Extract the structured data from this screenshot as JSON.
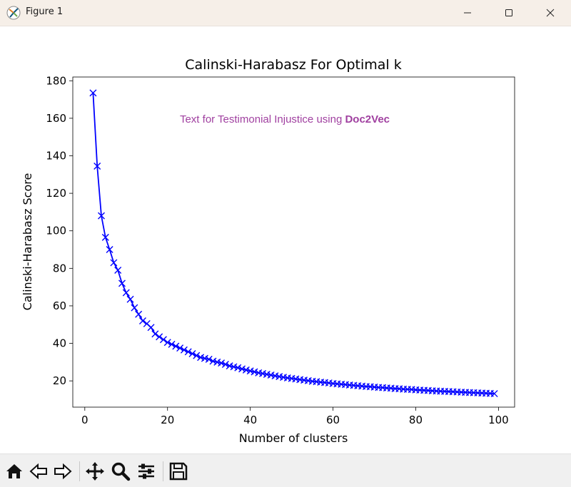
{
  "window": {
    "title": "Figure 1"
  },
  "chart_data": {
    "type": "line",
    "title": "Calinski-Harabasz For Optimal k",
    "xlabel": "Number of clusters",
    "ylabel": "Calinski-Harabasz Score",
    "annotation": {
      "text": "Text for Testimonial Injustice using ",
      "bold": "Doc2Vec",
      "color": "#a040a0"
    },
    "xlim": [
      -2.9,
      103.9
    ],
    "ylim": [
      6,
      182
    ],
    "xticks": [
      0,
      20,
      40,
      60,
      80,
      100
    ],
    "yticks": [
      20,
      40,
      60,
      80,
      100,
      120,
      140,
      160,
      180
    ],
    "marker": "x",
    "color": "#0000ff",
    "grid": false,
    "x": [
      2,
      3,
      4,
      5,
      6,
      7,
      8,
      9,
      10,
      11,
      12,
      13,
      14,
      15,
      16,
      17,
      18,
      19,
      20,
      21,
      22,
      23,
      24,
      25,
      26,
      27,
      28,
      29,
      30,
      31,
      32,
      33,
      34,
      35,
      36,
      37,
      38,
      39,
      40,
      41,
      42,
      43,
      44,
      45,
      46,
      47,
      48,
      49,
      50,
      51,
      52,
      53,
      54,
      55,
      56,
      57,
      58,
      59,
      60,
      61,
      62,
      63,
      64,
      65,
      66,
      67,
      68,
      69,
      70,
      71,
      72,
      73,
      74,
      75,
      76,
      77,
      78,
      79,
      80,
      81,
      82,
      83,
      84,
      85,
      86,
      87,
      88,
      89,
      90,
      91,
      92,
      93,
      94,
      95,
      96,
      97,
      98,
      99
    ],
    "y": [
      173.5,
      134.5,
      108,
      96.5,
      90,
      83,
      79,
      72,
      67,
      63.5,
      59,
      55.5,
      52,
      50.5,
      48.5,
      45,
      43.5,
      42,
      40.5,
      39.5,
      38.5,
      37.5,
      36.5,
      35.5,
      34.5,
      33.5,
      32.5,
      32,
      31.5,
      30.5,
      30,
      29.5,
      28.8,
      28,
      27.5,
      27,
      26.4,
      25.8,
      25.3,
      24.8,
      24.3,
      23.9,
      23.5,
      23.1,
      22.7,
      22.3,
      21.9,
      21.6,
      21.3,
      21,
      20.7,
      20.4,
      20.1,
      19.8,
      19.6,
      19.3,
      19.1,
      18.9,
      18.6,
      18.4,
      18.2,
      18,
      17.8,
      17.6,
      17.4,
      17.2,
      17,
      16.9,
      16.7,
      16.5,
      16.4,
      16.2,
      16.1,
      15.9,
      15.8,
      15.6,
      15.5,
      15.4,
      15.2,
      15.1,
      15,
      14.9,
      14.7,
      14.6,
      14.5,
      14.4,
      14.3,
      14.2,
      14.1,
      14,
      13.9,
      13.8,
      13.7,
      13.6,
      13.5,
      13.4,
      13.3,
      13.2
    ]
  },
  "toolbar": {
    "items": [
      "home-icon",
      "back-icon",
      "forward-icon",
      "pan-icon",
      "zoom-icon",
      "configure-icon",
      "save-icon"
    ]
  }
}
